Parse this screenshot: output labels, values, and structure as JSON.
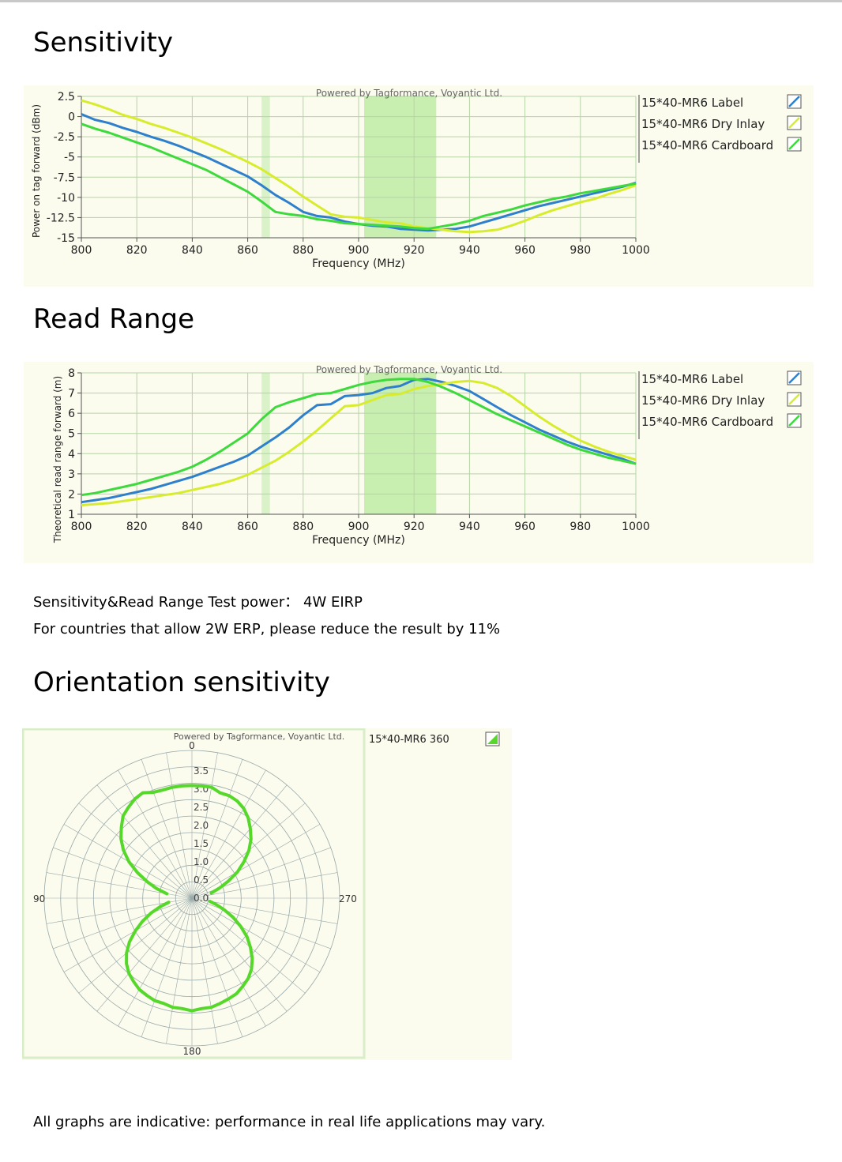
{
  "headings": {
    "sensitivity": "Sensitivity",
    "read_range": "Read Range",
    "orientation": "Orientation sensitivity"
  },
  "notes": {
    "test_power": "Sensitivity&Read Range Test power：  4W EIRP",
    "erp_note": "For countries that allow 2W ERP, please reduce the result by 11%",
    "disclaimer": "All graphs are indicative: performance in real life applications may vary."
  },
  "colors": {
    "label": "#2f80cc",
    "dry_inlay": "#d8ec2e",
    "cardboard": "#3dd93d",
    "panel_bg": "#fbfbee",
    "band_dark": "#c8eeb0",
    "band_light": "#d9f2c8",
    "grid": "#b6d4a6",
    "polar": "#55d82a"
  },
  "chart_data": [
    {
      "type": "line",
      "watermark": "Powered by Tagformance, Voyantic Ltd.",
      "xlabel": "Frequency (MHz)",
      "ylabel": "Power on tag forward (dBm)",
      "xlim": [
        800,
        1000
      ],
      "ylim": [
        -15,
        2.5
      ],
      "xticks": [
        800,
        820,
        840,
        860,
        880,
        900,
        920,
        940,
        960,
        980,
        1000
      ],
      "yticks": [
        2.5,
        0,
        -2.5,
        -5,
        -7.5,
        -10,
        -12.5,
        -15
      ],
      "ytick_labels": [
        "2.5",
        "0",
        "-2.5",
        "-5",
        "-7.5",
        "-10",
        "-12.5",
        "-15"
      ],
      "highlight_bands": [
        [
          865,
          868
        ],
        [
          902,
          928
        ]
      ],
      "legend_position": "right",
      "series": [
        {
          "name": "15*40-MR6 Label",
          "color_key": "label",
          "x": [
            800,
            805,
            810,
            815,
            820,
            825,
            830,
            835,
            840,
            845,
            850,
            855,
            860,
            865,
            870,
            875,
            880,
            885,
            890,
            895,
            900,
            905,
            910,
            915,
            920,
            925,
            930,
            935,
            940,
            945,
            950,
            955,
            960,
            965,
            970,
            975,
            980,
            985,
            990,
            995,
            1000
          ],
          "y": [
            0.3,
            -0.4,
            -0.8,
            -1.4,
            -1.9,
            -2.5,
            -3.0,
            -3.6,
            -4.3,
            -5.0,
            -5.8,
            -6.6,
            -7.4,
            -8.5,
            -9.7,
            -10.7,
            -11.8,
            -12.3,
            -12.5,
            -13.0,
            -13.3,
            -13.5,
            -13.6,
            -13.9,
            -14.0,
            -14.1,
            -14.0,
            -13.9,
            -13.6,
            -13.1,
            -12.6,
            -12.1,
            -11.6,
            -11.1,
            -10.7,
            -10.3,
            -9.9,
            -9.5,
            -9.1,
            -8.7,
            -8.2
          ]
        },
        {
          "name": "15*40-MR6 Dry Inlay",
          "color_key": "dry_inlay",
          "x": [
            800,
            805,
            810,
            815,
            820,
            825,
            830,
            835,
            840,
            845,
            850,
            855,
            860,
            865,
            870,
            875,
            880,
            885,
            890,
            895,
            900,
            905,
            910,
            915,
            920,
            925,
            930,
            935,
            940,
            945,
            950,
            955,
            960,
            965,
            970,
            975,
            980,
            985,
            990,
            995,
            1000
          ],
          "y": [
            2.0,
            1.5,
            0.9,
            0.2,
            -0.3,
            -0.9,
            -1.4,
            -2.0,
            -2.6,
            -3.3,
            -4.0,
            -4.8,
            -5.6,
            -6.5,
            -7.6,
            -8.7,
            -9.9,
            -11.0,
            -12.1,
            -12.4,
            -12.5,
            -12.8,
            -13.1,
            -13.2,
            -13.6,
            -13.8,
            -14.0,
            -14.2,
            -14.3,
            -14.2,
            -14.0,
            -13.5,
            -12.9,
            -12.2,
            -11.6,
            -11.1,
            -10.6,
            -10.2,
            -9.6,
            -9.1,
            -8.5
          ]
        },
        {
          "name": "15*40-MR6 Cardboard",
          "color_key": "cardboard",
          "x": [
            800,
            805,
            810,
            815,
            820,
            825,
            830,
            835,
            840,
            845,
            850,
            855,
            860,
            865,
            870,
            875,
            880,
            885,
            890,
            895,
            900,
            905,
            910,
            915,
            920,
            925,
            930,
            935,
            940,
            945,
            950,
            955,
            960,
            965,
            970,
            975,
            980,
            985,
            990,
            995,
            1000
          ],
          "y": [
            -0.9,
            -1.5,
            -2.0,
            -2.6,
            -3.2,
            -3.8,
            -4.5,
            -5.2,
            -5.9,
            -6.6,
            -7.5,
            -8.4,
            -9.3,
            -10.5,
            -11.8,
            -12.1,
            -12.3,
            -12.7,
            -12.9,
            -13.2,
            -13.3,
            -13.4,
            -13.5,
            -13.6,
            -13.8,
            -13.9,
            -13.6,
            -13.3,
            -12.9,
            -12.3,
            -11.9,
            -11.5,
            -11.0,
            -10.6,
            -10.2,
            -9.9,
            -9.5,
            -9.2,
            -8.9,
            -8.6,
            -8.3
          ]
        }
      ]
    },
    {
      "type": "line",
      "watermark": "Powered by Tagformance, Voyantic Ltd.",
      "xlabel": "Frequency (MHz)",
      "ylabel": "Theoretical read range forward (m)",
      "xlim": [
        800,
        1000
      ],
      "ylim": [
        1,
        8
      ],
      "xticks": [
        800,
        820,
        840,
        860,
        880,
        900,
        920,
        940,
        960,
        980,
        1000
      ],
      "yticks": [
        8,
        7,
        6,
        5,
        4,
        3,
        2,
        1
      ],
      "ytick_labels": [
        "8",
        "7",
        "6",
        "5",
        "4",
        "3",
        "2",
        "1"
      ],
      "highlight_bands": [
        [
          865,
          868
        ],
        [
          902,
          928
        ]
      ],
      "legend_position": "right",
      "series": [
        {
          "name": "15*40-MR6 Label",
          "color_key": "label",
          "x": [
            800,
            805,
            810,
            815,
            820,
            825,
            830,
            835,
            840,
            845,
            850,
            855,
            860,
            865,
            870,
            875,
            880,
            885,
            890,
            895,
            900,
            905,
            910,
            915,
            920,
            925,
            930,
            935,
            940,
            945,
            950,
            955,
            960,
            965,
            970,
            975,
            980,
            985,
            990,
            995,
            1000
          ],
          "y": [
            1.6,
            1.7,
            1.8,
            1.95,
            2.1,
            2.25,
            2.45,
            2.65,
            2.85,
            3.1,
            3.35,
            3.6,
            3.9,
            4.35,
            4.8,
            5.3,
            5.9,
            6.4,
            6.45,
            6.85,
            6.9,
            7.0,
            7.25,
            7.35,
            7.65,
            7.7,
            7.55,
            7.35,
            7.1,
            6.7,
            6.3,
            5.9,
            5.55,
            5.2,
            4.9,
            4.6,
            4.35,
            4.15,
            3.95,
            3.75,
            3.5
          ]
        },
        {
          "name": "15*40-MR6 Dry Inlay",
          "color_key": "dry_inlay",
          "x": [
            800,
            805,
            810,
            815,
            820,
            825,
            830,
            835,
            840,
            845,
            850,
            855,
            860,
            865,
            870,
            875,
            880,
            885,
            890,
            895,
            900,
            905,
            910,
            915,
            920,
            925,
            930,
            935,
            940,
            945,
            950,
            955,
            960,
            965,
            970,
            975,
            980,
            985,
            990,
            995,
            1000
          ],
          "y": [
            1.45,
            1.5,
            1.55,
            1.65,
            1.75,
            1.85,
            1.95,
            2.05,
            2.2,
            2.35,
            2.5,
            2.7,
            2.95,
            3.3,
            3.65,
            4.1,
            4.6,
            5.15,
            5.75,
            6.35,
            6.4,
            6.65,
            6.9,
            6.95,
            7.2,
            7.35,
            7.45,
            7.55,
            7.6,
            7.5,
            7.25,
            6.85,
            6.35,
            5.85,
            5.4,
            5.0,
            4.65,
            4.35,
            4.1,
            3.9,
            3.7
          ]
        },
        {
          "name": "15*40-MR6 Cardboard",
          "color_key": "cardboard",
          "x": [
            800,
            805,
            810,
            815,
            820,
            825,
            830,
            835,
            840,
            845,
            850,
            855,
            860,
            865,
            870,
            875,
            880,
            885,
            890,
            895,
            900,
            905,
            910,
            915,
            920,
            925,
            930,
            935,
            940,
            945,
            950,
            955,
            960,
            965,
            970,
            975,
            980,
            985,
            990,
            995,
            1000
          ],
          "y": [
            1.95,
            2.05,
            2.2,
            2.35,
            2.5,
            2.7,
            2.9,
            3.1,
            3.35,
            3.7,
            4.1,
            4.55,
            5.0,
            5.7,
            6.3,
            6.55,
            6.75,
            6.95,
            7.0,
            7.2,
            7.4,
            7.55,
            7.65,
            7.7,
            7.7,
            7.55,
            7.3,
            7.0,
            6.65,
            6.3,
            5.95,
            5.65,
            5.35,
            5.05,
            4.75,
            4.45,
            4.2,
            4.0,
            3.8,
            3.65,
            3.5
          ]
        }
      ]
    },
    {
      "type": "polar",
      "watermark": "Powered by Tagformance, Voyantic Ltd.",
      "angle_labels": [
        "0",
        "90",
        "180",
        "270"
      ],
      "radial_ticks": [
        "0.0",
        "0.5",
        "1.0",
        "1.5",
        "2.0",
        "2.5",
        "3.0",
        "3.5"
      ],
      "rlim": [
        0,
        3.5
      ],
      "legend_position": "right",
      "series": [
        {
          "name": "15*40-MR6 360",
          "color_key": "polar",
          "angle_deg": [
            80,
            75,
            70,
            65,
            60,
            55,
            50,
            45,
            40,
            35,
            30,
            25,
            20,
            15,
            10,
            5,
            0,
            355,
            350,
            345,
            340,
            335,
            330,
            325,
            320,
            315,
            310,
            305,
            300,
            295,
            290,
            285
          ],
          "r": [
            0.7,
            1.0,
            1.3,
            1.65,
            2.0,
            2.3,
            2.55,
            2.75,
            2.95,
            3.05,
            3.15,
            3.2,
            3.1,
            3.08,
            3.1,
            3.1,
            3.1,
            3.1,
            3.1,
            3.0,
            3.0,
            2.95,
            2.85,
            2.7,
            2.5,
            2.3,
            2.05,
            1.75,
            1.45,
            1.1,
            0.8,
            0.55
          ],
          "angle_deg_lower": [
            100,
            105,
            110,
            115,
            120,
            125,
            130,
            135,
            140,
            145,
            150,
            155,
            160,
            165,
            170,
            175,
            180,
            185,
            190,
            195,
            200,
            205,
            210,
            215,
            220,
            225,
            230,
            235,
            240,
            245,
            250,
            255,
            260
          ],
          "r_lower": [
            0.65,
            0.9,
            1.2,
            1.5,
            1.8,
            2.1,
            2.35,
            2.55,
            2.7,
            2.8,
            2.9,
            2.95,
            3.0,
            3.0,
            3.05,
            3.05,
            3.1,
            3.05,
            3.05,
            3.0,
            2.95,
            2.9,
            2.8,
            2.7,
            2.55,
            2.35,
            2.1,
            1.85,
            1.55,
            1.25,
            0.95,
            0.7,
            0.5
          ]
        }
      ]
    }
  ]
}
